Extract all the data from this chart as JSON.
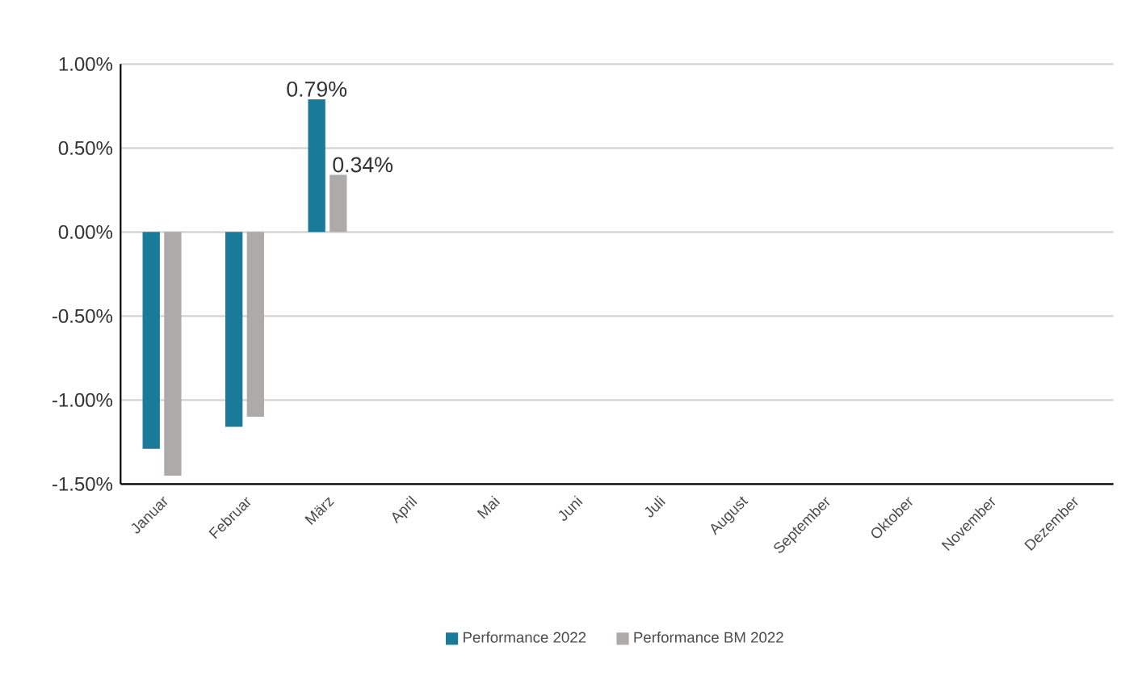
{
  "chart_data": {
    "type": "bar",
    "categories": [
      "Januar",
      "Februar",
      "März",
      "April",
      "Mai",
      "Juni",
      "Juli",
      "August",
      "September",
      "Oktober",
      "November",
      "Dezember"
    ],
    "series": [
      {
        "name": "Performance 2022",
        "color": "#1a7a9a",
        "values": [
          -1.29,
          -1.16,
          0.79,
          null,
          null,
          null,
          null,
          null,
          null,
          null,
          null,
          null
        ],
        "value_labels": [
          null,
          null,
          "0.79%",
          null,
          null,
          null,
          null,
          null,
          null,
          null,
          null,
          null
        ]
      },
      {
        "name": "Performance BM 2022",
        "color": "#aeaaaa",
        "values": [
          -1.45,
          -1.1,
          0.34,
          null,
          null,
          null,
          null,
          null,
          null,
          null,
          null,
          null
        ],
        "value_labels": [
          null,
          null,
          "0.34%",
          null,
          null,
          null,
          null,
          null,
          null,
          null,
          null,
          null
        ]
      }
    ],
    "ylim": [
      -1.5,
      1
    ],
    "yticks": [
      {
        "value": -1.5,
        "label": "-1.50%"
      },
      {
        "value": -1,
        "label": "-1.00%"
      },
      {
        "value": -0.5,
        "label": "-0.50%"
      },
      {
        "value": 0,
        "label": "0.00%"
      },
      {
        "value": 0.5,
        "label": "0.50%"
      },
      {
        "value": 1,
        "label": "1.00%"
      }
    ],
    "grid": "y",
    "legend": "bottom"
  }
}
